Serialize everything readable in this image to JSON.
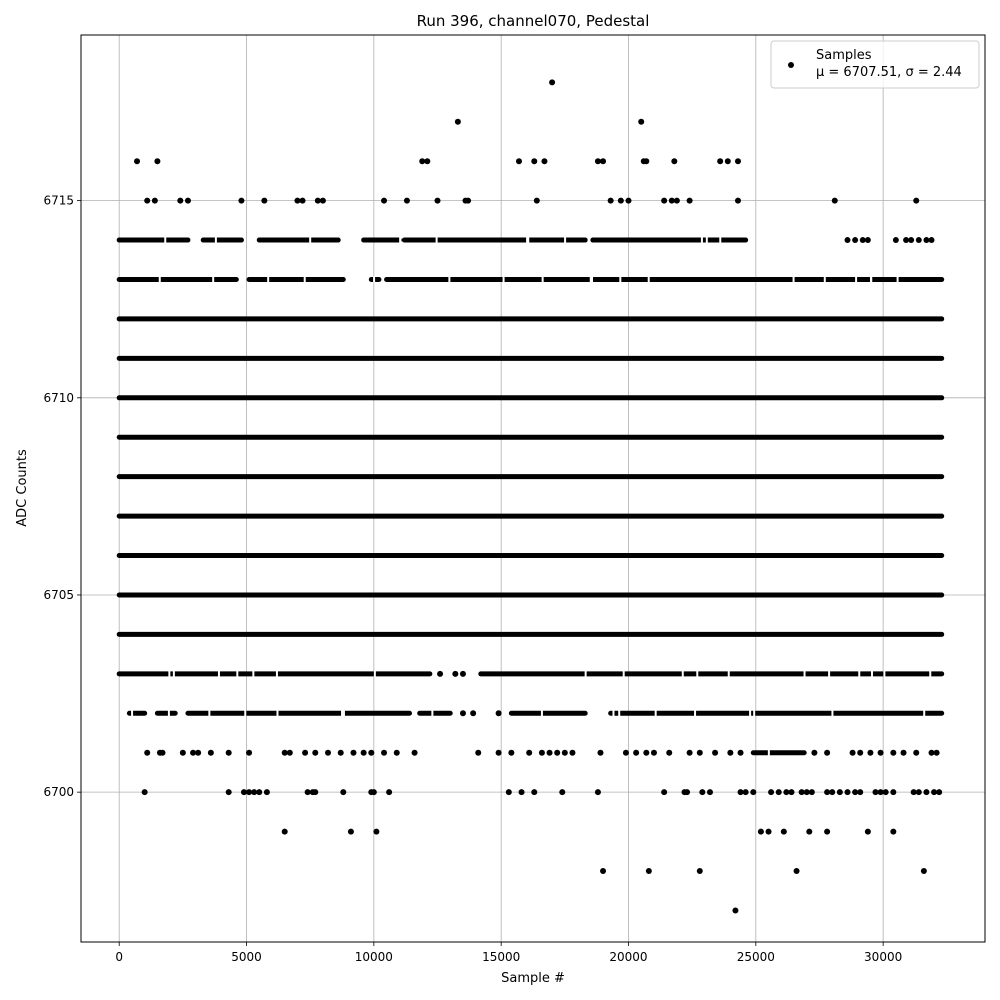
{
  "chart_data": {
    "type": "scatter",
    "title": "Run 396, channel070, Pedestal",
    "xlabel": "Sample #",
    "ylabel": "ADC Counts",
    "xlim": [
      -1500,
      34000
    ],
    "ylim": [
      6696.2,
      6719.2
    ],
    "xticks": [
      0,
      5000,
      10000,
      15000,
      20000,
      25000,
      30000
    ],
    "yticks": [
      6700,
      6705,
      6710,
      6715
    ],
    "grid": true,
    "legend_position": "top-right",
    "marker_color": "#000000",
    "series": [
      {
        "name": "Samples",
        "stats_label": "μ = 6707.51, σ = 2.44",
        "n_samples": 32300,
        "levels": [
          {
            "y": 6714,
            "ranges": [
              [
                0,
                2700
              ],
              [
                3300,
                4800
              ],
              [
                5500,
                8600
              ],
              [
                9600,
                11000
              ],
              [
                11200,
                18300
              ],
              [
                18600,
                24600
              ]
            ],
            "isolated_x": [
              28600,
              28900,
              29200,
              29400,
              30500,
              30900,
              31100,
              31400,
              31700,
              31900
            ]
          },
          {
            "y": 6713,
            "ranges": [
              [
                0,
                4600
              ],
              [
                5100,
                8800
              ],
              [
                9900,
                10200
              ],
              [
                10500,
                32300
              ]
            ],
            "isolated_x": []
          },
          {
            "y": 6712,
            "ranges": [
              [
                0,
                32300
              ]
            ],
            "isolated_x": []
          },
          {
            "y": 6711,
            "ranges": [
              [
                0,
                32300
              ]
            ],
            "isolated_x": []
          },
          {
            "y": 6710,
            "ranges": [
              [
                0,
                32300
              ]
            ],
            "isolated_x": []
          },
          {
            "y": 6709,
            "ranges": [
              [
                0,
                32300
              ]
            ],
            "isolated_x": []
          },
          {
            "y": 6708,
            "ranges": [
              [
                0,
                32300
              ]
            ],
            "isolated_x": []
          },
          {
            "y": 6707,
            "ranges": [
              [
                0,
                32300
              ]
            ],
            "isolated_x": []
          },
          {
            "y": 6706,
            "ranges": [
              [
                0,
                32300
              ]
            ],
            "isolated_x": []
          },
          {
            "y": 6705,
            "ranges": [
              [
                0,
                32300
              ]
            ],
            "isolated_x": []
          },
          {
            "y": 6704,
            "ranges": [
              [
                0,
                32300
              ]
            ],
            "isolated_x": []
          },
          {
            "y": 6703,
            "ranges": [
              [
                0,
                12200
              ],
              [
                14200,
                32300
              ]
            ],
            "isolated_x": [
              12600,
              13200,
              13500
            ]
          },
          {
            "y": 6702,
            "ranges": [
              [
                400,
                1000
              ],
              [
                1500,
                2200
              ],
              [
                2700,
                11400
              ],
              [
                11800,
                13000
              ],
              [
                15400,
                18300
              ],
              [
                19300,
                32300
              ]
            ],
            "isolated_x": [
              13500,
              13900,
              14900
            ]
          },
          {
            "y": 6701,
            "ranges": [
              [
                24900,
                26900
              ]
            ],
            "isolated_x": [
              1100,
              1600,
              1700,
              2500,
              2900,
              3100,
              3600,
              4300,
              5100,
              6500,
              6700,
              7300,
              7700,
              8200,
              8700,
              9200,
              9600,
              9900,
              10400,
              10900,
              11600,
              14100,
              14900,
              15400,
              16100,
              16600,
              16900,
              17200,
              17500,
              17800,
              18900,
              19900,
              20300,
              20700,
              21000,
              21600,
              22400,
              22800,
              23400,
              24000,
              24400,
              27300,
              27800,
              28800,
              29100,
              29500,
              29900,
              30400,
              30800,
              31300,
              31900,
              32100
            ]
          },
          {
            "y": 6700,
            "isolated_x": [
              1000,
              4300,
              4900,
              5100,
              5300,
              5500,
              5800,
              7400,
              7600,
              7700,
              8800,
              9900,
              10000,
              10600,
              15300,
              15800,
              16300,
              17400,
              18800,
              21400,
              22200,
              22300,
              22900,
              23200,
              24400,
              24600,
              24900,
              25600,
              25900,
              26200,
              26400,
              26800,
              27000,
              27200,
              27800,
              28000,
              28300,
              28600,
              28900,
              29100,
              29700,
              29900,
              30100,
              30400,
              31200,
              31400,
              31700,
              32000,
              32200
            ]
          },
          {
            "y": 6699,
            "isolated_x": [
              6500,
              9100,
              10100,
              25200,
              25500,
              26100,
              27100,
              27800,
              29400,
              30400
            ]
          },
          {
            "y": 6715,
            "isolated_x": [
              1100,
              1400,
              2400,
              2700,
              4800,
              5700,
              7000,
              7200,
              7800,
              8000,
              10400,
              11300,
              12500,
              13600,
              13700,
              16400,
              19300,
              19700,
              20000,
              21400,
              21700,
              21900,
              22400,
              24300,
              28100,
              31300
            ]
          },
          {
            "y": 6716,
            "isolated_x": [
              700,
              1500,
              11900,
              12100,
              15700,
              16300,
              16700,
              18800,
              19000,
              20600,
              20700,
              21800,
              23600,
              23900,
              24300
            ]
          },
          {
            "y": 6698,
            "isolated_x": [
              19000,
              20800,
              22800,
              26600,
              31600
            ]
          },
          {
            "y": 6717,
            "isolated_x": [
              13300,
              20500
            ]
          },
          {
            "y": 6718,
            "isolated_x": [
              17000
            ]
          },
          {
            "y": 6697,
            "isolated_x": [
              24200
            ]
          }
        ]
      }
    ]
  }
}
